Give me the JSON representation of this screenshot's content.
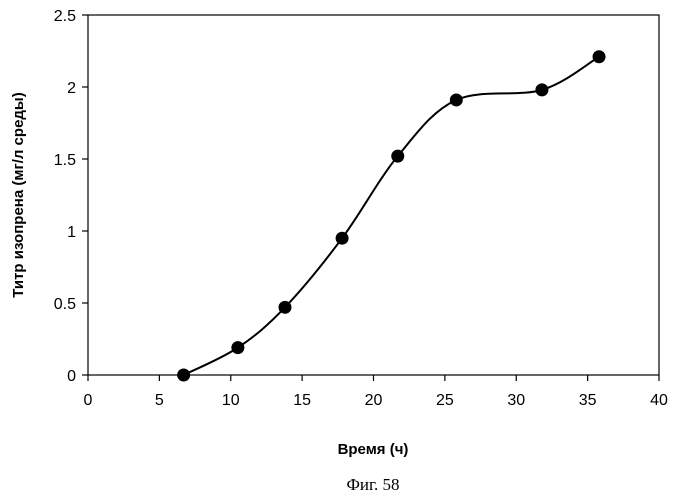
{
  "chart_data": {
    "type": "line",
    "title": "",
    "xlabel": "Время (ч)",
    "ylabel": "Титр изопрена (мг/л среды)",
    "xlim": [
      0,
      40
    ],
    "ylim": [
      0,
      2.5
    ],
    "x_ticks": [
      "0",
      "5",
      "10",
      "15",
      "20",
      "25",
      "30",
      "35",
      "40"
    ],
    "y_ticks": [
      "0",
      "0.5",
      "1",
      "1.5",
      "2",
      "2.5"
    ],
    "grid": false,
    "legend": "none",
    "series": [
      {
        "marker": "circle",
        "smooth": true,
        "color": "#000000",
        "x": [
          6.7,
          10.5,
          13.8,
          17.8,
          21.7,
          25.8,
          31.8,
          35.8
        ],
        "y": [
          0.0,
          0.19,
          0.47,
          0.95,
          1.52,
          1.91,
          1.98,
          2.21
        ]
      }
    ]
  },
  "caption": "Фиг. 58"
}
